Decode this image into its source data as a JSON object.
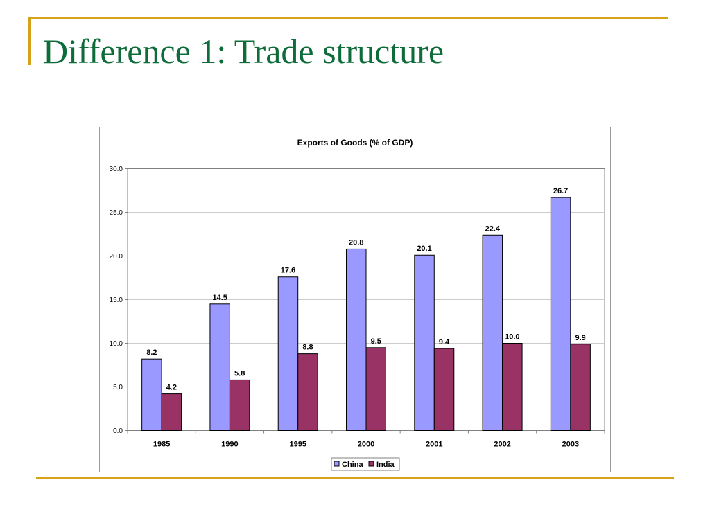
{
  "slide": {
    "title": "Difference 1: Trade structure"
  },
  "colors": {
    "accent_rule": "#d6a21a",
    "title_text": "#0e6b3a",
    "china": "#9999ff",
    "india": "#993366"
  },
  "chart_data": {
    "type": "bar",
    "title": "Exports of Goods (% of GDP)",
    "xlabel": "",
    "ylabel": "",
    "categories": [
      "1985",
      "1990",
      "1995",
      "2000",
      "2001",
      "2002",
      "2003"
    ],
    "series": [
      {
        "name": "China",
        "color": "#9999ff",
        "values": [
          8.2,
          14.5,
          17.6,
          20.8,
          20.1,
          22.4,
          26.7
        ],
        "labels": [
          "8.2",
          "14.5",
          "17.6",
          "20.8",
          "20.1",
          "22.4",
          "26.7"
        ]
      },
      {
        "name": "India",
        "color": "#993366",
        "values": [
          4.2,
          5.8,
          8.8,
          9.5,
          9.4,
          10.0,
          9.9
        ],
        "labels": [
          "4.2",
          "5.8",
          "8.8",
          "9.5",
          "9.4",
          "10.0",
          "9.9"
        ]
      }
    ],
    "ylim": [
      0,
      30
    ],
    "yticks": [
      "0.0",
      "5.0",
      "10.0",
      "15.0",
      "20.0",
      "25.0",
      "30.0"
    ],
    "grid": true,
    "legend": "bottom-center"
  }
}
